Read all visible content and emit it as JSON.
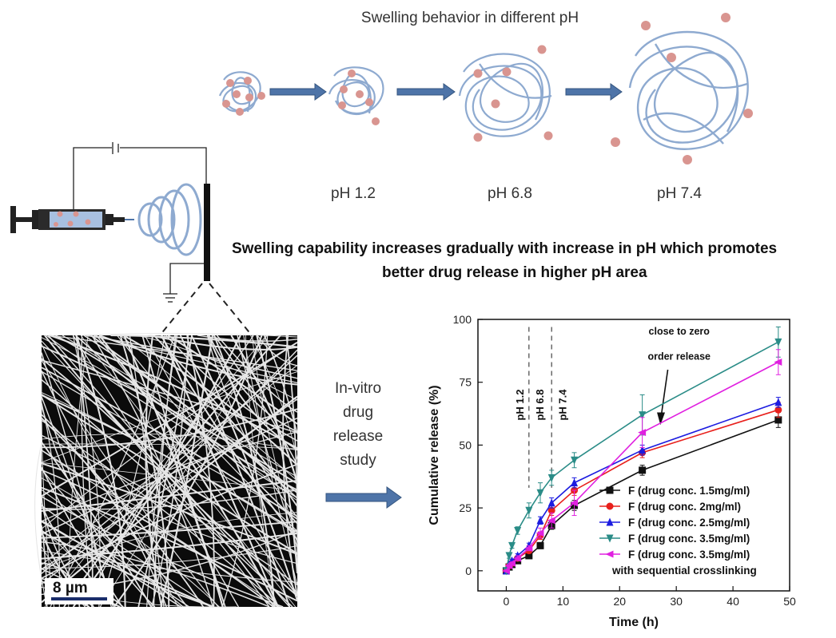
{
  "swelling": {
    "title": "Swelling behavior in different pH",
    "labels": [
      "pH 1.2",
      "pH 6.8",
      "pH 7.4"
    ]
  },
  "statement": {
    "line1": "Swelling capability increases gradually with increase in pH which promotes",
    "line2": "better drug release in higher pH area"
  },
  "invitro": {
    "lines": [
      "In-vitro",
      "drug",
      "release",
      "study"
    ]
  },
  "sem": {
    "scale_bar": "8 µm"
  },
  "colors": {
    "fiber": "#8eaad0",
    "drug_dot": "#d99590",
    "arrow": "#4e74a8"
  },
  "chart_data": {
    "type": "line",
    "xlabel": "Time (h)",
    "ylabel": "Cumulative release (%)",
    "xlim": [
      -5,
      50
    ],
    "ylim": [
      -8,
      100
    ],
    "xticks": [
      0,
      10,
      20,
      30,
      40,
      50
    ],
    "yticks": [
      0,
      25,
      50,
      75,
      100
    ],
    "ph_regions": [
      {
        "label": "pH 1.2",
        "x": 2.5
      },
      {
        "label": "pH 6.8",
        "x": 6
      },
      {
        "label": "pH 7.4",
        "x": 10
      }
    ],
    "ph_boundaries": [
      4,
      8
    ],
    "annotation": {
      "line1": "close to zero",
      "line2": "order release"
    },
    "legend_extra": "with sequential crosslinking",
    "series": [
      {
        "name": "F (drug conc. 1.5mg/ml)",
        "color": "#111111",
        "marker": "square",
        "x": [
          0,
          0.5,
          1,
          2,
          4,
          6,
          8,
          12,
          24,
          48
        ],
        "y": [
          0,
          1.5,
          2.5,
          4,
          6,
          10,
          18,
          26,
          40,
          60
        ],
        "err": [
          0,
          0.5,
          0.5,
          0.8,
          1,
          1.2,
          1.5,
          2,
          2,
          3
        ]
      },
      {
        "name": "F (drug conc. 2mg/ml)",
        "color": "#e8201c",
        "marker": "circle",
        "x": [
          0,
          0.5,
          1,
          2,
          4,
          6,
          8,
          12,
          24,
          48
        ],
        "y": [
          0,
          2,
          3,
          5,
          8,
          14,
          24,
          32,
          47,
          64
        ],
        "err": [
          0,
          0.5,
          0.5,
          0.8,
          1,
          1.5,
          2,
          2,
          2,
          3
        ]
      },
      {
        "name": "F (drug conc. 2.5mg/ml)",
        "color": "#1c1ce0",
        "marker": "triangle-up",
        "x": [
          0,
          0.5,
          1,
          2,
          4,
          6,
          8,
          12,
          24,
          48
        ],
        "y": [
          0,
          2.5,
          4,
          6,
          10,
          20,
          27,
          35,
          48,
          67
        ],
        "err": [
          0,
          0.5,
          0.5,
          0.8,
          1,
          1.5,
          2,
          2,
          2,
          2
        ]
      },
      {
        "name": "F (drug conc. 3.5mg/ml)",
        "color": "#2a8c87",
        "marker": "triangle-down",
        "x": [
          0,
          0.5,
          1,
          2,
          4,
          6,
          8,
          12,
          24,
          48
        ],
        "y": [
          0,
          6,
          10,
          16,
          24,
          31,
          37,
          44,
          62,
          91
        ],
        "err": [
          0,
          1,
          1,
          1.5,
          3,
          4,
          3,
          3,
          8,
          6
        ]
      },
      {
        "name": "F (drug conc. 3.5mg/ml)",
        "color": "#e020e0",
        "marker": "triangle-left",
        "x": [
          0,
          0.5,
          1,
          2,
          4,
          6,
          8,
          12,
          24,
          48
        ],
        "y": [
          0,
          2,
          3,
          5,
          9,
          15,
          20,
          27,
          55,
          83
        ],
        "err": [
          0,
          0.5,
          0.5,
          1,
          1,
          2,
          3,
          5,
          6,
          5
        ]
      }
    ]
  }
}
